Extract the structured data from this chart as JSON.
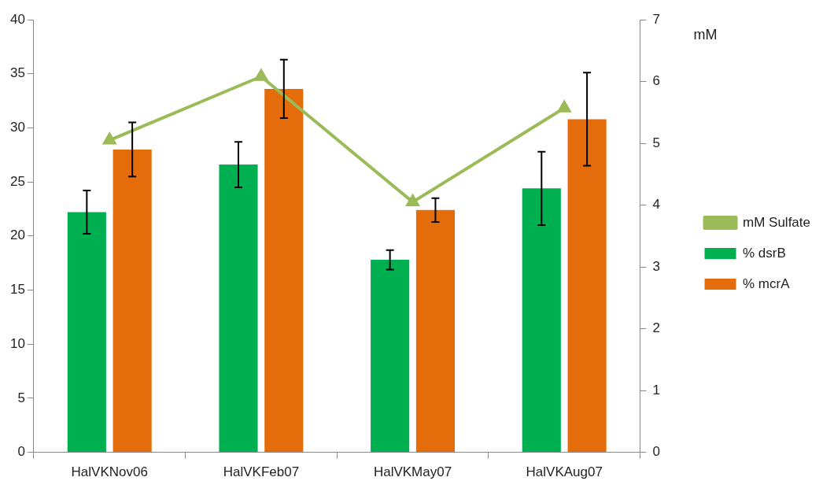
{
  "chart_data": {
    "type": "bar",
    "y2label": "mM",
    "categories": [
      "HalVKNov06",
      "HalVKFeb07",
      "HalVKMay07",
      "HalVKAug07"
    ],
    "series": [
      {
        "name": "% dsrB",
        "color": "#00b050",
        "values": [
          22.2,
          26.6,
          17.8,
          24.4
        ],
        "errors": [
          2.0,
          2.1,
          0.9,
          3.4
        ]
      },
      {
        "name": "% mcrA",
        "color": "#e46c0a",
        "values": [
          28.0,
          33.6,
          22.4,
          30.8
        ],
        "errors": [
          2.5,
          2.7,
          1.1,
          4.3
        ]
      },
      {
        "name": "mM Sulfate",
        "type": "line",
        "axis": "y2",
        "color": "#9bbb59",
        "values": [
          5.05,
          6.08,
          4.05,
          5.57
        ]
      }
    ],
    "ylim": [
      0,
      40
    ],
    "yticks": [
      0,
      5,
      10,
      15,
      20,
      25,
      30,
      35,
      40
    ],
    "y2lim": [
      0,
      7
    ],
    "y2ticks": [
      0,
      1,
      2,
      3,
      4,
      5,
      6,
      7
    ],
    "grid": false,
    "legend": "right",
    "marker": "triangle",
    "line_style": "solid"
  }
}
